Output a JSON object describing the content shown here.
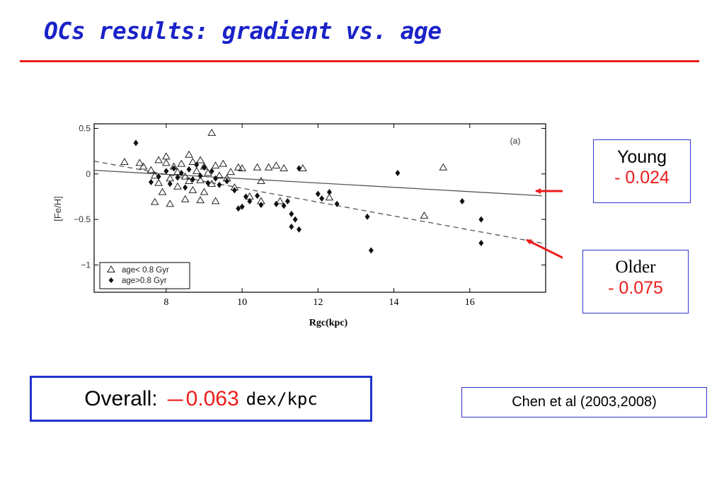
{
  "slide": {
    "title": "OCs results: gradient vs. age",
    "overall": {
      "label": "Overall:",
      "dash": "－",
      "value": "0.063",
      "unit": "dex/kpc"
    },
    "reference": "Chen et al (2003,2008)",
    "colors": {
      "title": "#1a22c8",
      "accent": "#ee1c1c",
      "box_border": "#2233cc"
    }
  },
  "callouts": {
    "young": {
      "label": "Young",
      "value": "- 0.024"
    },
    "older": {
      "label": "Older",
      "value": "- 0.075"
    }
  },
  "chart_data": {
    "type": "scatter",
    "panel_label": "(a)",
    "xlabel": "Rgc(kpc)",
    "ylabel": "[Fe/H]",
    "xlim": [
      6.1,
      18.0
    ],
    "ylim": [
      -1.3,
      0.55
    ],
    "xticks": [
      8,
      10,
      12,
      14,
      16
    ],
    "yticks": [
      0.5,
      0,
      -0.5,
      -1
    ],
    "ytick_labels": [
      "0.5",
      "0",
      "−0.5",
      "−1"
    ],
    "legend_position": "bottom-left",
    "series": [
      {
        "name": "age< 0.8 Gyr",
        "marker": "triangle",
        "points": [
          [
            6.9,
            0.13
          ],
          [
            7.3,
            0.12
          ],
          [
            7.4,
            0.08
          ],
          [
            7.6,
            0.04
          ],
          [
            7.7,
            -0.02
          ],
          [
            7.8,
            0.15
          ],
          [
            7.8,
            -0.1
          ],
          [
            7.9,
            -0.2
          ],
          [
            8.0,
            0.12
          ],
          [
            8.0,
            0.19
          ],
          [
            8.1,
            -0.05
          ],
          [
            8.2,
            0.08
          ],
          [
            8.3,
            0.02
          ],
          [
            8.3,
            -0.14
          ],
          [
            8.4,
            0.11
          ],
          [
            8.5,
            -0.03
          ],
          [
            8.6,
            0.21
          ],
          [
            8.6,
            -0.08
          ],
          [
            8.7,
            0.13
          ],
          [
            8.7,
            -0.18
          ],
          [
            8.8,
            0.03
          ],
          [
            8.9,
            -0.07
          ],
          [
            8.9,
            0.15
          ],
          [
            9.0,
            -0.2
          ],
          [
            9.0,
            0.08
          ],
          [
            9.1,
            0.01
          ],
          [
            9.2,
            0.45
          ],
          [
            9.2,
            -0.11
          ],
          [
            9.3,
            0.09
          ],
          [
            9.4,
            -0.02
          ],
          [
            9.5,
            0.11
          ],
          [
            9.6,
            -0.05
          ],
          [
            9.7,
            0.02
          ],
          [
            9.8,
            -0.15
          ],
          [
            9.9,
            0.07
          ],
          [
            10.0,
            0.06
          ],
          [
            10.2,
            -0.25
          ],
          [
            10.4,
            0.07
          ],
          [
            10.5,
            -0.08
          ],
          [
            10.7,
            0.07
          ],
          [
            10.9,
            0.09
          ],
          [
            11.1,
            0.06
          ],
          [
            11.6,
            0.06
          ],
          [
            12.3,
            -0.26
          ],
          [
            14.8,
            -0.46
          ],
          [
            15.3,
            0.07
          ],
          [
            7.7,
            -0.31
          ],
          [
            8.1,
            -0.33
          ],
          [
            8.5,
            -0.28
          ],
          [
            8.9,
            -0.29
          ],
          [
            9.3,
            -0.3
          ],
          [
            10.5,
            -0.3
          ],
          [
            11.0,
            -0.3
          ]
        ]
      },
      {
        "name": "age>0.8 Gyr",
        "marker": "diamond",
        "points": [
          [
            7.2,
            0.34
          ],
          [
            7.6,
            -0.09
          ],
          [
            7.8,
            -0.03
          ],
          [
            8.0,
            0.03
          ],
          [
            8.1,
            -0.11
          ],
          [
            8.2,
            0.06
          ],
          [
            8.3,
            -0.04
          ],
          [
            8.4,
            0.01
          ],
          [
            8.5,
            -0.15
          ],
          [
            8.6,
            0.05
          ],
          [
            8.7,
            -0.06
          ],
          [
            8.8,
            0.1
          ],
          [
            8.9,
            -0.02
          ],
          [
            9.0,
            0.07
          ],
          [
            9.1,
            -0.1
          ],
          [
            9.2,
            0.03
          ],
          [
            9.3,
            -0.05
          ],
          [
            9.4,
            -0.12
          ],
          [
            9.6,
            -0.08
          ],
          [
            9.8,
            -0.18
          ],
          [
            9.9,
            -0.38
          ],
          [
            10.0,
            -0.36
          ],
          [
            10.1,
            -0.25
          ],
          [
            10.2,
            -0.3
          ],
          [
            10.4,
            -0.24
          ],
          [
            10.5,
            -0.34
          ],
          [
            10.9,
            -0.33
          ],
          [
            11.1,
            -0.35
          ],
          [
            11.2,
            -0.3
          ],
          [
            11.3,
            -0.44
          ],
          [
            11.3,
            -0.58
          ],
          [
            11.4,
            -0.5
          ],
          [
            11.5,
            -0.61
          ],
          [
            11.5,
            0.06
          ],
          [
            12.0,
            -0.22
          ],
          [
            12.1,
            -0.27
          ],
          [
            12.3,
            -0.2
          ],
          [
            12.5,
            -0.33
          ],
          [
            13.3,
            -0.47
          ],
          [
            13.4,
            -0.84
          ],
          [
            14.1,
            0.01
          ],
          [
            15.8,
            -0.3
          ],
          [
            16.3,
            -0.5
          ],
          [
            16.3,
            -0.76
          ]
        ]
      }
    ],
    "fits": [
      {
        "name": "young",
        "style": "solid",
        "x": [
          6.1,
          17.9
        ],
        "y": [
          0.04,
          -0.24
        ]
      },
      {
        "name": "older",
        "style": "dashed",
        "x": [
          6.1,
          17.9
        ],
        "y": [
          0.14,
          -0.76
        ]
      }
    ]
  }
}
